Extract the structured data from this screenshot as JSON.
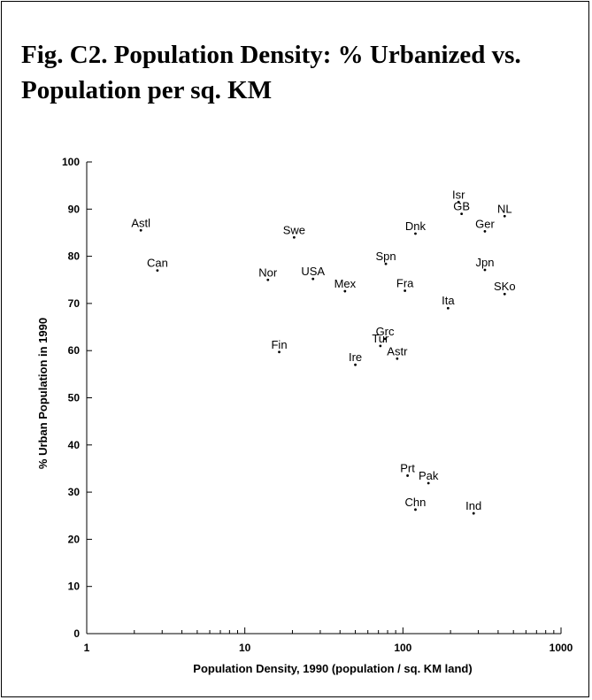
{
  "chart_data": {
    "type": "scatter",
    "title": "Fig. C2.  Population Density: % Urbanized vs. Population per sq. KM",
    "xlabel": "Population Density, 1990 (population / sq. KM  land)",
    "ylabel": "% Urban Population in 1990",
    "xscale": "log",
    "xlim": [
      1,
      1000
    ],
    "ylim": [
      0,
      100
    ],
    "xticks": [
      1,
      10,
      100,
      1000
    ],
    "xtick_labels": [
      "1",
      "10",
      "100",
      "1000"
    ],
    "yticks": [
      0,
      10,
      20,
      30,
      40,
      50,
      60,
      70,
      80,
      90,
      100
    ],
    "ytick_labels": [
      "0",
      "10",
      "20",
      "30",
      "40",
      "50",
      "60",
      "70",
      "80",
      "90",
      "100"
    ],
    "grid": false,
    "legend": "none",
    "points": [
      {
        "label": "Astl",
        "x": 2.2,
        "y": 85.5
      },
      {
        "label": "Can",
        "x": 2.8,
        "y": 77.0
      },
      {
        "label": "Swe",
        "x": 20.5,
        "y": 84.0
      },
      {
        "label": "Nor",
        "x": 14,
        "y": 75.0
      },
      {
        "label": "USA",
        "x": 27,
        "y": 75.2
      },
      {
        "label": "Mex",
        "x": 43,
        "y": 72.6
      },
      {
        "label": "Fin",
        "x": 16.5,
        "y": 59.7
      },
      {
        "label": "Ire",
        "x": 50,
        "y": 57.0
      },
      {
        "label": "Spn",
        "x": 78,
        "y": 78.4
      },
      {
        "label": "Fra",
        "x": 103,
        "y": 72.7
      },
      {
        "label": "Dnk",
        "x": 120,
        "y": 84.8
      },
      {
        "label": "Grc",
        "x": 77,
        "y": 62.5
      },
      {
        "label": "Tur",
        "x": 72,
        "y": 61.0
      },
      {
        "label": "Astr",
        "x": 92,
        "y": 58.3
      },
      {
        "label": "Isr",
        "x": 225,
        "y": 91.5
      },
      {
        "label": "GB",
        "x": 235,
        "y": 89.0
      },
      {
        "label": "NL",
        "x": 440,
        "y": 88.5
      },
      {
        "label": "Ger",
        "x": 330,
        "y": 85.3
      },
      {
        "label": "Jpn",
        "x": 330,
        "y": 77.1
      },
      {
        "label": "SKo",
        "x": 440,
        "y": 72.0
      },
      {
        "label": "Ita",
        "x": 193,
        "y": 69.0
      },
      {
        "label": "Prt",
        "x": 107,
        "y": 33.5
      },
      {
        "label": "Pak",
        "x": 145,
        "y": 31.9
      },
      {
        "label": "Chn",
        "x": 120,
        "y": 26.3
      },
      {
        "label": "Ind",
        "x": 280,
        "y": 25.5
      }
    ]
  }
}
